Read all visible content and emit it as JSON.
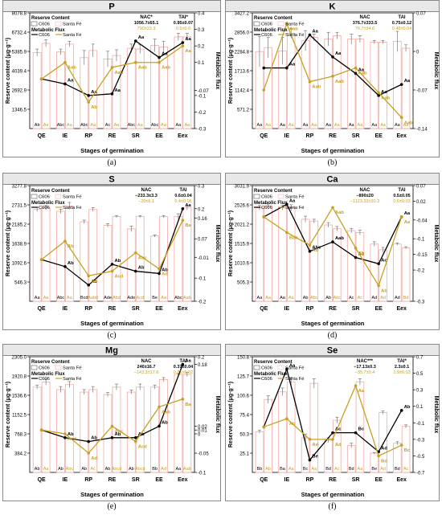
{
  "colors": {
    "c606": "#000000",
    "santa_fe": "#c8a020",
    "bar_c606": "#f2b4ae",
    "bar_sf": "#f2b4ae"
  },
  "chart_data": [
    {
      "type": "bar+line",
      "title": "P",
      "panel_label": "(a)",
      "xlabel": "Stages of germination",
      "ylabel": "Reserve content (μg·g⁻¹)",
      "ylabel_right": "Metabolic flux",
      "categories": [
        "QE",
        "IE",
        "RP",
        "RE",
        "SR",
        "EE",
        "Eex"
      ],
      "ylim": [
        0,
        8078.8
      ],
      "yticks": [
        1346.5,
        2692.9,
        4039.4,
        5385.9,
        6732.4,
        8078.8
      ],
      "ylim_right": [
        -0.3,
        0.4
      ],
      "yticks_right": [
        -0.3,
        -0.2,
        -0.1,
        -0.07,
        0.1,
        0.2,
        0.3,
        0.4
      ],
      "legend": {
        "reserve_title": "Reserve Content",
        "flux_title": "Metabolic Flux",
        "series": [
          "C606",
          "Santa Fé"
        ]
      },
      "stats": [
        {
          "name": "NAC*",
          "c606": "1056.7±65.1",
          "sf": "790±23.3"
        },
        {
          "name": "TAI*",
          "c606": "0.95±0.07",
          "sf": "0.5±0.6"
        }
      ],
      "series": [
        {
          "name": "C606",
          "kind": "bar",
          "values": [
            5300,
            5350,
            4950,
            4850,
            5600,
            5800,
            6400
          ],
          "errors": [
            250,
            200,
            500,
            550,
            300,
            450,
            250
          ],
          "labels": [
            "Ab",
            "Abc",
            "Abc",
            "Ac",
            "Abc",
            "Abc",
            "Aa"
          ]
        },
        {
          "name": "Santa Fé",
          "kind": "bar",
          "values": [
            5950,
            5900,
            5450,
            5100,
            5550,
            5700,
            6400
          ],
          "errors": [
            250,
            200,
            450,
            400,
            300,
            400,
            250
          ],
          "labels": [
            "Aa",
            "Aa",
            "Aa",
            "Aa",
            "Aa",
            "Aa",
            "Aa"
          ]
        },
        {
          "name": "C606",
          "kind": "line",
          "values": [
            0.0,
            -0.03,
            -0.1,
            -0.09,
            0.23,
            0.13,
            0.22
          ],
          "labels": [
            "",
            "Aa",
            "Aa",
            "Aa",
            "Aa",
            "Aa",
            "Aa"
          ]
        },
        {
          "name": "Santa Fé",
          "kind": "line",
          "values": [
            0.0,
            0.1,
            -0.14,
            0.07,
            0.1,
            0.1,
            0.2
          ],
          "labels": [
            "",
            "Aab",
            "Ab",
            "Aab",
            "Aab",
            "Aab",
            "Aa"
          ]
        }
      ]
    },
    {
      "type": "bar+line",
      "title": "K",
      "panel_label": "(b)",
      "xlabel": "Stages of germination",
      "ylabel": "Reserve content (μg·g⁻¹)",
      "ylabel_right": "Metabolic flux",
      "categories": [
        "QE",
        "IE",
        "RP",
        "RE",
        "SR",
        "EE",
        "Eex"
      ],
      "ylim": [
        0,
        3427.2
      ],
      "yticks": [
        571.2,
        1142.4,
        1713.6,
        2284.8,
        2856.0,
        3427.2
      ],
      "ylim_right": [
        -0.14,
        0.07
      ],
      "yticks_right": [
        -0.14,
        -0.07,
        0.0,
        0.07
      ],
      "legend": {
        "reserve_title": "Reserve Content",
        "flux_title": "Metabolic Flux",
        "series": [
          "C606",
          "Santa Fé"
        ]
      },
      "stats": [
        {
          "name": "NAC",
          "c606": "376.7±333.5",
          "sf": "76.7±34.6"
        },
        {
          "name": "TAI",
          "c606": "0.75±0.12",
          "sf": "0.48±0.04"
        }
      ],
      "series": [
        {
          "name": "C606",
          "kind": "bar",
          "values": [
            2280,
            2300,
            2600,
            2650,
            2650,
            2560,
            2580
          ],
          "errors": [
            450,
            400,
            300,
            200,
            150,
            50,
            300
          ],
          "labels": [
            "Aa",
            "Aa",
            "Aa",
            "Aa",
            "Aa",
            "Aa",
            "Aa"
          ]
        },
        {
          "name": "Santa Fé",
          "kind": "bar",
          "values": [
            2400,
            2820,
            2700,
            2750,
            2650,
            2560,
            2380
          ],
          "errors": [
            300,
            150,
            100,
            100,
            100,
            50,
            100
          ],
          "labels": [
            "Aa",
            "Aa",
            "Aa",
            "Aa",
            "Aa",
            "Aa",
            "Aa"
          ]
        },
        {
          "name": "C606",
          "kind": "line",
          "values": [
            -0.03,
            -0.03,
            0.03,
            -0.01,
            -0.04,
            -0.08,
            -0.06
          ],
          "labels": [
            "",
            "Aa",
            "Aa",
            "Aa",
            "Aa",
            "Aa",
            "Aa"
          ]
        },
        {
          "name": "Santa Fé",
          "kind": "line",
          "values": [
            -0.07,
            0.05,
            -0.055,
            -0.045,
            -0.03,
            -0.075,
            -0.12
          ],
          "labels": [
            "",
            "Aab",
            "Aab",
            "Aab",
            "Aab",
            "Aab",
            "Aab"
          ]
        }
      ]
    },
    {
      "type": "bar+line",
      "title": "S",
      "panel_label": "(c)",
      "xlabel": "Stages of germination",
      "ylabel": "Reserve content (μg·g⁻¹)",
      "ylabel_right": "Metabolic flux",
      "categories": [
        "QE",
        "IE",
        "RP",
        "RE",
        "SR",
        "EE",
        "Eex"
      ],
      "ylim": [
        0,
        3277.8
      ],
      "yticks": [
        546.3,
        1092.6,
        1638.9,
        2185.2,
        2731.5,
        3277.8
      ],
      "ylim_right": [
        -0.2,
        0.3
      ],
      "yticks_right": [
        -0.2,
        -0.1,
        -0.01,
        0.07,
        0.16,
        0.2,
        0.3
      ],
      "legend": {
        "reserve_title": "Reserve Content",
        "flux_title": "Metabolic Flux",
        "series": [
          "C606",
          "Santa Fé"
        ]
      },
      "stats": [
        {
          "name": "NAC",
          "c606": "−233.3±3.3",
          "sf": "−20±6.1"
        },
        {
          "name": "TAI",
          "c606": "0.6±0.04",
          "sf": "0.4±0.06"
        }
      ],
      "series": [
        {
          "name": "C606",
          "kind": "bar",
          "values": [
            2600,
            2550,
            2250,
            2150,
            2050,
            1850,
            2400
          ],
          "errors": [
            60,
            60,
            50,
            50,
            80,
            30,
            80
          ],
          "labels": [
            "Aa",
            "Abc",
            "Bcd",
            "Ade",
            "Ade",
            "Be",
            "Abc"
          ]
        },
        {
          "name": "Santa Fé",
          "kind": "bar",
          "values": [
            2650,
            2700,
            2600,
            2400,
            2400,
            2400,
            2650
          ],
          "errors": [
            60,
            100,
            50,
            30,
            30,
            30,
            60
          ],
          "labels": [
            "Aa",
            "Aa",
            "Aabd",
            "Abd",
            "Acd",
            "Aa",
            "Aab"
          ]
        },
        {
          "name": "C606",
          "kind": "line",
          "values": [
            -0.02,
            -0.05,
            -0.13,
            -0.04,
            -0.07,
            -0.08,
            0.2
          ],
          "labels": [
            "",
            "Ab",
            "Ab",
            "Ab",
            "Ab",
            "Ab",
            "Aa"
          ]
        },
        {
          "name": "Santa Fé",
          "kind": "line",
          "values": [
            -0.02,
            0.06,
            -0.09,
            -0.07,
            0.01,
            -0.06,
            0.15
          ],
          "labels": [
            "",
            "Ab",
            "Ad",
            "Acd",
            "Abc",
            "Ad",
            "Ba"
          ]
        }
      ]
    },
    {
      "type": "bar+line",
      "title": "Ca",
      "panel_label": "(d)",
      "xlabel": "Stages of germination",
      "ylabel": "Reserve content (μg·g⁻¹)",
      "ylabel_right": "Metabolic flux",
      "categories": [
        "QE",
        "IE",
        "RP",
        "RE",
        "SR",
        "EE",
        "Eex"
      ],
      "ylim": [
        0,
        3031.9
      ],
      "yticks": [
        505.3,
        1010.6,
        1515.9,
        2021.2,
        2526.6,
        3031.9
      ],
      "ylim_right": [
        -0.3,
        0.07
      ],
      "yticks_right": [
        -0.3,
        -0.2,
        -0.15,
        -0.1,
        -0.04,
        0.02,
        0.07
      ],
      "legend": {
        "reserve_title": "Reserve Content",
        "flux_title": "Metabolic Flux",
        "series": [
          "C606",
          "Santa Fé"
        ]
      },
      "stats": [
        {
          "name": "NAC",
          "c606": "−890±20",
          "sf": "−1123.33±20.3"
        },
        {
          "name": "TAI",
          "c606": "0.5±0.05",
          "sf": "0.6±0.03"
        }
      ],
      "series": [
        {
          "name": "C606",
          "kind": "bar",
          "values": [
            2450,
            2450,
            2150,
            2000,
            1850,
            1500,
            1500
          ],
          "errors": [
            60,
            60,
            80,
            60,
            60,
            60,
            30
          ],
          "labels": [
            "Aa",
            "Aa",
            "Ab",
            "Ab",
            "Ac",
            "Ad",
            "Ad"
          ]
        },
        {
          "name": "Santa Fé",
          "kind": "bar",
          "values": [
            2500,
            2450,
            2100,
            1900,
            1800,
            1350,
            1400
          ],
          "errors": [
            50,
            80,
            50,
            60,
            60,
            60,
            30
          ],
          "labels": [
            "Aa",
            "Aa",
            "Abc",
            "Abc",
            "Ac",
            "Ad",
            "Bd"
          ]
        },
        {
          "name": "C606",
          "kind": "line",
          "values": [
            -0.03,
            0.01,
            -0.14,
            -0.11,
            -0.16,
            -0.18,
            -0.03
          ],
          "labels": [
            "",
            "Aa",
            "Abc",
            "Aab",
            "Ac",
            "Ac",
            "Aa"
          ]
        },
        {
          "name": "Santa Fé",
          "kind": "line",
          "values": [
            -0.03,
            -0.08,
            -0.12,
            0.0,
            -0.13,
            -0.25,
            -0.03
          ],
          "labels": [
            "",
            "Bab",
            "Ab",
            "Aab",
            "Ab",
            "Ab",
            "Aa"
          ]
        }
      ]
    },
    {
      "type": "bar+line",
      "title": "Mg",
      "panel_label": "(e)",
      "xlabel": "Stages of germination",
      "ylabel": "Reserve content (μg·g⁻¹)",
      "ylabel_right": "Metabolic flux",
      "categories": [
        "QE",
        "IE",
        "RP",
        "RE",
        "SR",
        "EE",
        "Eex"
      ],
      "ylim": [
        0,
        2305.0
      ],
      "yticks": [
        384.2,
        768.3,
        1152.5,
        1536.6,
        1920.8,
        2305.0
      ],
      "ylim_right": [
        -0.1,
        0.2
      ],
      "yticks_right": [
        -0.1,
        -0.05,
        0.0,
        0.01,
        0.02,
        0.18,
        0.2
      ],
      "legend": {
        "reserve_title": "Reserve Content",
        "flux_title": "Metabolic Flux",
        "series": [
          "C606",
          "Santa Fé"
        ]
      },
      "stats": [
        {
          "name": "NAC",
          "c606": "240±16.7",
          "sf": "−143.3±17.6"
        },
        {
          "name": "TAI",
          "c606": "0.37±0.04",
          "sf": "0.31±0.02"
        }
      ],
      "series": [
        {
          "name": "C606",
          "kind": "bar",
          "values": [
            1700,
            1650,
            1600,
            1550,
            1600,
            1700,
            1950
          ],
          "errors": [
            40,
            60,
            50,
            40,
            40,
            40,
            30
          ],
          "labels": [
            "Ab",
            "Ab",
            "Ab",
            "Ab",
            "Ab",
            "Bb",
            "Aa"
          ]
        },
        {
          "name": "Santa Fé",
          "kind": "bar",
          "values": [
            1800,
            1750,
            1650,
            1700,
            1700,
            1850,
            1950
          ],
          "errors": [
            60,
            60,
            60,
            60,
            60,
            40,
            40
          ],
          "labels": [
            "Aa",
            "Abc",
            "Ac",
            "Abcd",
            "Abcd",
            "Ad",
            "Aab"
          ]
        },
        {
          "name": "C606",
          "kind": "line",
          "values": [
            0.01,
            -0.01,
            -0.02,
            -0.01,
            -0.01,
            0.02,
            0.18
          ],
          "labels": [
            "",
            "Ab",
            "Ab",
            "Ab",
            "Ab",
            "Ab",
            "Aa"
          ]
        },
        {
          "name": "Santa Fé",
          "kind": "line",
          "values": [
            0.01,
            0.0,
            -0.05,
            0.02,
            -0.02,
            0.07,
            0.09
          ],
          "labels": [
            "",
            "Acd",
            "Ad",
            "Abc",
            "Acd",
            "Aab",
            "Ba"
          ]
        }
      ]
    },
    {
      "type": "bar+line",
      "title": "Se",
      "panel_label": "(f)",
      "xlabel": "Stages of germination",
      "ylabel": "Reserve content (μg·g⁻¹)",
      "ylabel_right": "Metabolic flux",
      "categories": [
        "QE",
        "IE",
        "RP",
        "RE",
        "SR",
        "EE",
        "Eex"
      ],
      "ylim": [
        0,
        150.8
      ],
      "yticks": [
        25.1,
        50.3,
        75.4,
        100.6,
        125.7,
        150.8
      ],
      "ylim_right": [
        -0.7,
        0.7
      ],
      "yticks_right": [
        -0.7,
        -0.5,
        -0.3,
        -0.1,
        0.1,
        0.3,
        0.5,
        0.7
      ],
      "legend": {
        "reserve_title": "Reserve Content",
        "flux_title": "Metabolic Flux",
        "series": [
          "C606",
          "Santa Fé"
        ]
      },
      "stats": [
        {
          "name": "NAC***",
          "c606": "−17.13±0.3",
          "sf": "−35.7±0.4"
        },
        {
          "name": "TAI*",
          "c606": "2.3±0.1",
          "sf": "1.9±0.03"
        }
      ],
      "series": [
        {
          "name": "C606",
          "kind": "bar",
          "values": [
            53,
            105,
            45,
            42,
            35,
            25,
            38
          ],
          "errors": [
            2,
            5,
            5,
            3,
            3,
            1,
            2
          ],
          "labels": [
            "Bb",
            "Ba",
            "Bc",
            "Bd",
            "Bd",
            "Be",
            "Bd"
          ]
        },
        {
          "name": "Santa Fé",
          "kind": "bar",
          "values": [
            95,
            118,
            116,
            68,
            118,
            78,
            60
          ],
          "errors": [
            5,
            6,
            6,
            4,
            4,
            2,
            2
          ],
          "labels": [
            "Ab",
            "Aa",
            "Aa",
            "Ac",
            "Aa",
            "Ad",
            "Ac"
          ]
        },
        {
          "name": "C606",
          "kind": "line",
          "values": [
            -0.15,
            0.55,
            -0.55,
            -0.22,
            -0.22,
            -0.45,
            0.05
          ],
          "labels": [
            "",
            "Aa",
            "Be",
            "Ac",
            "Bc",
            "Ad",
            "Ab"
          ]
        },
        {
          "name": "Santa Fé",
          "kind": "line",
          "values": [
            -0.15,
            -0.05,
            -0.3,
            -0.3,
            0.35,
            -0.5,
            -0.37
          ],
          "labels": [
            "",
            "Ab",
            "Ad",
            "Ad",
            "Aa",
            "Bd",
            "Bc"
          ]
        }
      ]
    }
  ]
}
